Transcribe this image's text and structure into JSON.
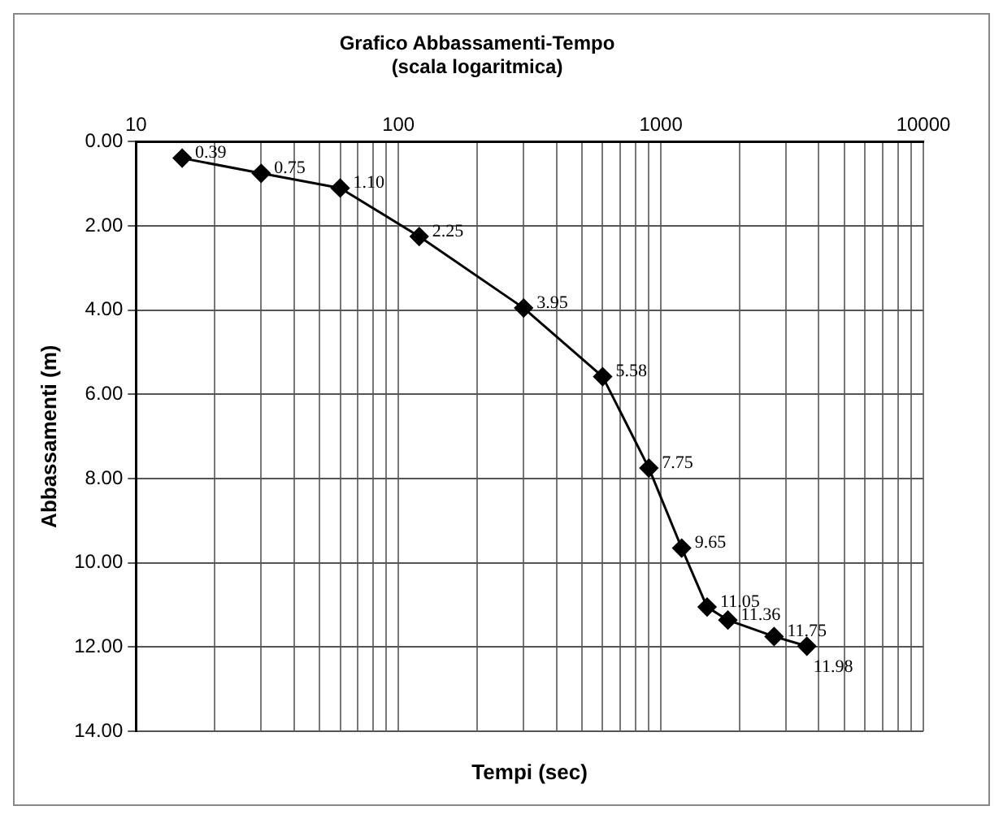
{
  "chart_data": {
    "type": "line",
    "title": "Grafico Abbassamenti-Tempo",
    "subtitle": "(scala logaritmica)",
    "xlabel": "Tempi (sec)",
    "ylabel": "Abbassamenti (m)",
    "x": [
      15,
      30,
      60,
      120,
      300,
      600,
      900,
      1200,
      1500,
      1800,
      2700,
      3600
    ],
    "series": [
      {
        "color": "#000000",
        "values": [
          0.39,
          0.75,
          1.1,
          2.25,
          3.95,
          5.58,
          7.75,
          9.65,
          11.05,
          11.36,
          11.75,
          11.98
        ],
        "value_labels": [
          "0.39",
          "0.75",
          "1.10",
          "2.25",
          "3.95",
          "5.58",
          "7.75",
          "9.65",
          "11.05",
          "11.36",
          "11.75",
          "11.98"
        ]
      }
    ],
    "log": "x",
    "xlim": [
      10,
      10000
    ],
    "xticks": [
      10,
      {
        "value": 20,
        "label": null
      },
      {
        "value": 30,
        "label": null
      },
      {
        "value": 40,
        "label": null
      },
      {
        "value": 50,
        "label": null
      },
      {
        "value": 60,
        "label": null
      },
      {
        "value": 70,
        "label": null
      },
      {
        "value": 80,
        "label": null
      },
      {
        "value": 90,
        "label": null
      },
      100,
      {
        "value": 200,
        "label": null
      },
      {
        "value": 300,
        "label": null
      },
      {
        "value": 400,
        "label": null
      },
      {
        "value": 500,
        "label": null
      },
      {
        "value": 600,
        "label": null
      },
      {
        "value": 700,
        "label": null
      },
      {
        "value": 800,
        "label": null
      },
      {
        "value": 900,
        "label": null
      },
      1000,
      {
        "value": 2000,
        "label": null
      },
      {
        "value": 3000,
        "label": null
      },
      {
        "value": 4000,
        "label": null
      },
      {
        "value": 5000,
        "label": null
      },
      {
        "value": 6000,
        "label": null
      },
      {
        "value": 7000,
        "label": null
      },
      {
        "value": 8000,
        "label": null
      },
      {
        "value": 9000,
        "label": null
      },
      10000
    ],
    "ylim": [
      14,
      0
    ],
    "yticks": [
      {
        "value": 0,
        "label": "0.00"
      },
      {
        "value": 2,
        "label": "2.00"
      },
      {
        "value": 4,
        "label": "4.00"
      },
      {
        "value": 6,
        "label": "6.00"
      },
      {
        "value": 8,
        "label": "8.00"
      },
      {
        "value": 10,
        "label": "10.00"
      },
      {
        "value": 12,
        "label": "12.00"
      },
      {
        "value": 14,
        "label": "14.00"
      }
    ],
    "grid": true,
    "marker": "diamond",
    "line_style": "solid",
    "legend": false
  }
}
